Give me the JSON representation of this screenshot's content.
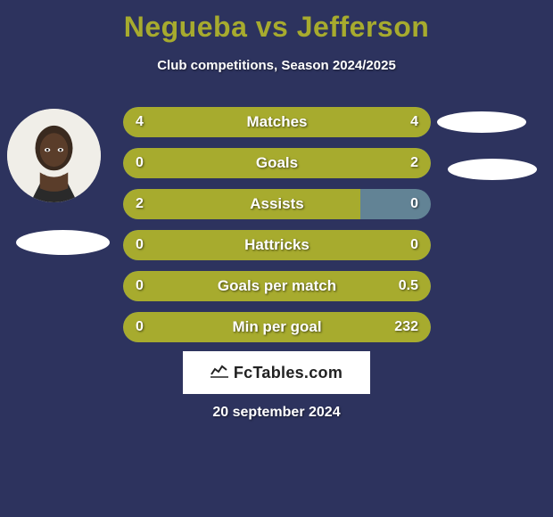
{
  "title": "Negueba vs Jefferson",
  "subtitle": "Club competitions, Season 2024/2025",
  "colors": {
    "background": "#2d335e",
    "accent": "#a7ab2e",
    "bar_track": "#628395",
    "bar_fill": "#a7ab2e",
    "text": "#ffffff",
    "logo_bg": "#ffffff",
    "logo_text": "#222222"
  },
  "bars": [
    {
      "label": "Matches",
      "left": "4",
      "right": "4",
      "fill_pct": 100
    },
    {
      "label": "Goals",
      "left": "0",
      "right": "2",
      "fill_pct": 100
    },
    {
      "label": "Assists",
      "left": "2",
      "right": "0",
      "fill_pct": 77
    },
    {
      "label": "Hattricks",
      "left": "0",
      "right": "0",
      "fill_pct": 100
    },
    {
      "label": "Goals per match",
      "left": "0",
      "right": "0.5",
      "fill_pct": 100
    },
    {
      "label": "Min per goal",
      "left": "0",
      "right": "232",
      "fill_pct": 100
    }
  ],
  "logo_text": "FcTables.com",
  "footer_date": "20 september 2024"
}
